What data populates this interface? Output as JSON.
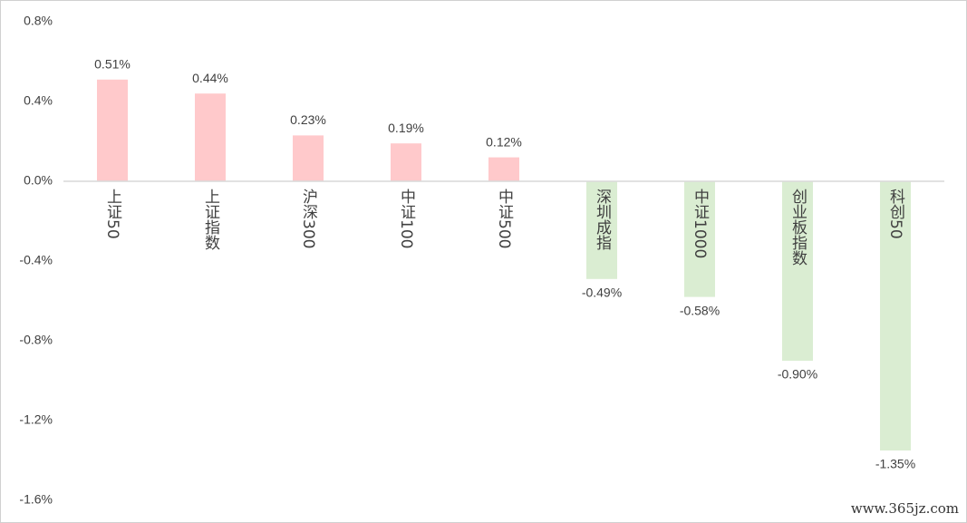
{
  "chart_data": {
    "type": "bar",
    "categories": [
      "上证50",
      "上证指数",
      "沪深300",
      "中证100",
      "中证500",
      "深圳成指",
      "中证1000",
      "创业板指数",
      "科创50"
    ],
    "values": [
      0.51,
      0.44,
      0.23,
      0.19,
      0.12,
      -0.49,
      -0.58,
      -0.9,
      -1.35
    ],
    "value_labels": [
      "0.51%",
      "0.44%",
      "0.23%",
      "0.19%",
      "0.12%",
      "-0.49%",
      "-0.58%",
      "-0.90%",
      "-1.35%"
    ],
    "positive_color": "#ffc9cb",
    "negative_color": "#daedd2",
    "ylim": [
      -1.6,
      0.8
    ],
    "yticks": [
      {
        "value": -1.6,
        "label": "-1.6%"
      },
      {
        "value": -1.2,
        "label": "-1.2%"
      },
      {
        "value": -0.8,
        "label": "-0.8%"
      },
      {
        "value": -0.4,
        "label": "-0.4%"
      },
      {
        "value": 0,
        "label": "0.0%"
      },
      {
        "value": 0.4,
        "label": "0.4%"
      },
      {
        "value": 0.8,
        "label": "0.8%"
      }
    ],
    "grid": false,
    "watermark": "www.365jz.com"
  }
}
